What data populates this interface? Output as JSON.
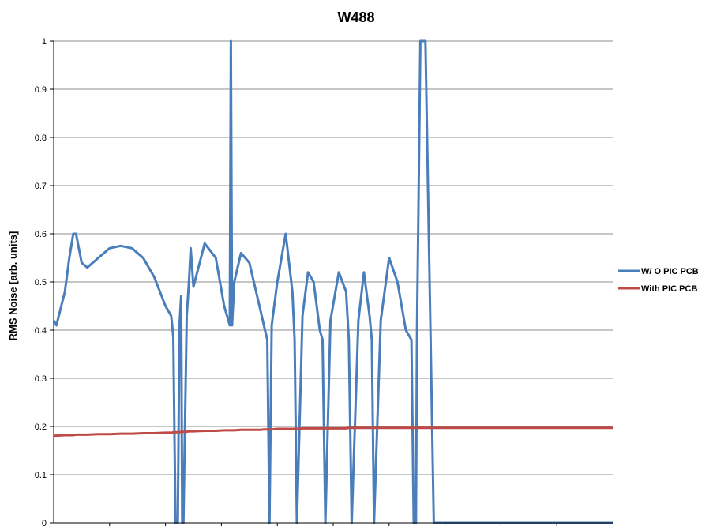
{
  "chart_data": {
    "type": "line",
    "title": "W488",
    "ylabel": "RMS Noise [arb. units]",
    "xlabel": "",
    "ylim": [
      0,
      1
    ],
    "yticks": [
      "0",
      "0.1",
      "0.2",
      "0.3",
      "0.4",
      "0.5",
      "0.6",
      "0.7",
      "0.8",
      "0.9",
      "1"
    ],
    "grid": true,
    "legend_position": "right",
    "x": [
      0,
      0.5,
      2,
      2.8,
      3.5,
      4,
      5,
      6,
      8,
      10,
      12,
      14,
      16,
      18,
      20,
      21,
      21.2,
      21.4,
      21.8,
      22.2,
      22.5,
      22.8,
      23,
      23.2,
      23.8,
      24.2,
      24.5,
      25,
      27,
      29,
      30.5,
      31.5,
      31.7,
      31.9,
      32.3,
      33.5,
      35,
      37,
      37.6,
      38.2,
      38.6,
      39,
      40,
      41.5,
      42.7,
      43.1,
      43.5,
      44.5,
      45.5,
      46.5,
      47.6,
      48.1,
      48.6,
      49.5,
      51,
      52.3,
      52.8,
      53.3,
      54.5,
      55.5,
      56.5,
      56.9,
      57.3,
      58.5,
      60,
      61.5,
      63,
      64,
      64.4,
      64.8,
      65,
      65.2,
      65.6,
      66.5,
      68,
      69.5,
      71.3,
      72,
      100
    ],
    "series": [
      {
        "name": "W/ O PIC PCB",
        "color": "#4a7ebb",
        "values": [
          0.42,
          0.41,
          0.48,
          0.55,
          0.6,
          0.6,
          0.54,
          0.53,
          0.55,
          0.57,
          0.575,
          0.57,
          0.55,
          0.51,
          0.45,
          0.43,
          0.41,
          0.385,
          0,
          0,
          0.41,
          0.47,
          0,
          0,
          0.43,
          0.5,
          0.57,
          0.49,
          0.58,
          0.55,
          0.45,
          0.41,
          1,
          0.41,
          0.5,
          0.56,
          0.54,
          0.44,
          0.41,
          0.38,
          0,
          0.41,
          0.5,
          0.6,
          0.48,
          0.38,
          0,
          0.43,
          0.52,
          0.5,
          0.4,
          0.38,
          0,
          0.42,
          0.52,
          0.48,
          0.38,
          0,
          0.42,
          0.52,
          0.43,
          0.38,
          0,
          0.42,
          0.55,
          0.5,
          0.4,
          0.38,
          0,
          0,
          0.41,
          0.6,
          1,
          1,
          0,
          0,
          0,
          0,
          0
        ]
      },
      {
        "name": "With PIC PCB",
        "color": "#be4b48",
        "values": [
          0.181,
          0.181,
          0.182,
          0.182,
          0.182,
          0.183,
          0.183,
          0.183,
          0.184,
          0.184,
          0.185,
          0.185,
          0.186,
          0.186,
          0.187,
          0.187,
          0.187,
          0.188,
          0.188,
          0.188,
          0.188,
          0.189,
          0.189,
          0.189,
          0.189,
          0.19,
          0.19,
          0.19,
          0.191,
          0.191,
          0.192,
          0.192,
          0.192,
          0.192,
          0.192,
          0.193,
          0.193,
          0.193,
          0.194,
          0.194,
          0.194,
          0.194,
          0.195,
          0.195,
          0.195,
          0.195,
          0.195,
          0.196,
          0.196,
          0.196,
          0.196,
          0.196,
          0.196,
          0.196,
          0.196,
          0.196,
          0.197,
          0.197,
          0.197,
          0.197,
          0.197,
          0.197,
          0.197,
          0.197,
          0.197,
          0.197,
          0.197,
          0.197,
          0.197,
          0.197,
          0.197,
          0.197,
          0.197,
          0.197,
          0.197,
          0.197,
          0.197,
          0.197,
          0.197
        ]
      }
    ],
    "legend": [
      "W/ O PIC PCB",
      "With PIC PCB"
    ]
  }
}
